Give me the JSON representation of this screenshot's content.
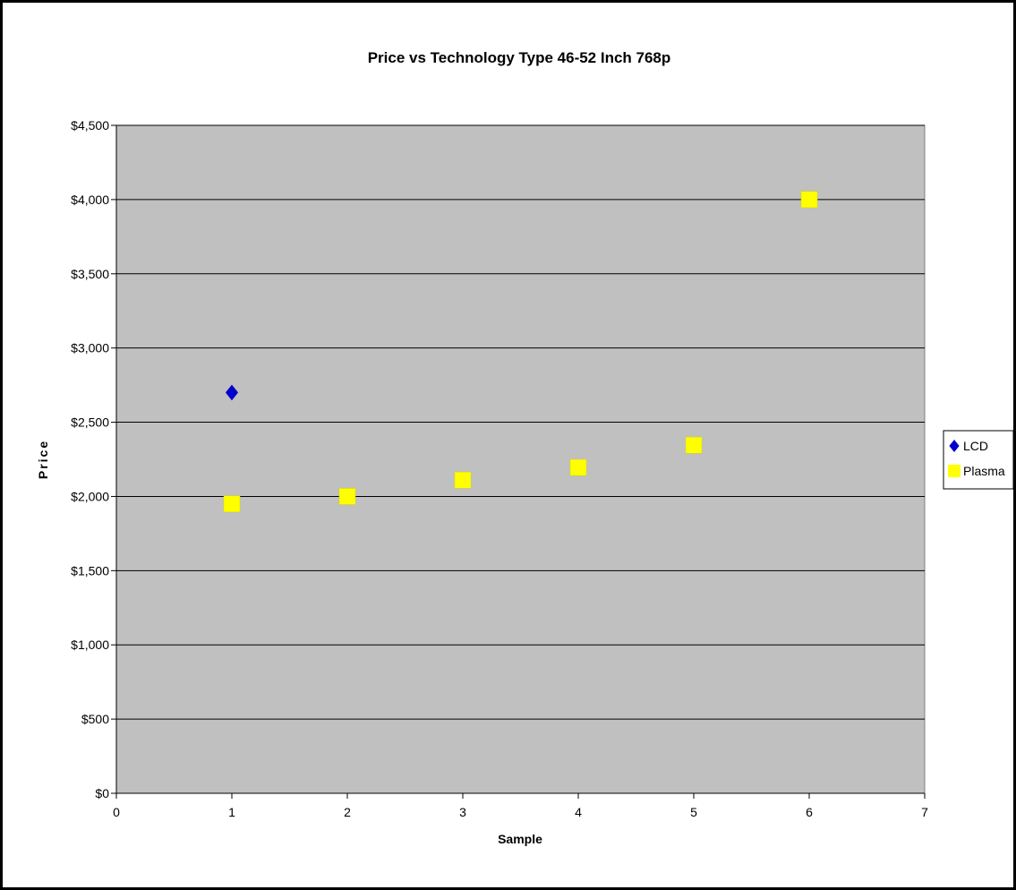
{
  "chart_data": {
    "type": "scatter",
    "title": "Price vs Technology Type 46-52 Inch 768p",
    "xlabel": "Sample",
    "ylabel": "Price",
    "xlim": [
      0,
      7
    ],
    "ylim": [
      0,
      4500
    ],
    "x_ticks": [
      0,
      1,
      2,
      3,
      4,
      5,
      6,
      7
    ],
    "y_ticks": [
      0,
      500,
      1000,
      1500,
      2000,
      2500,
      3000,
      3500,
      4000,
      4500
    ],
    "y_tick_labels": [
      "$0",
      "$500",
      "$1,000",
      "$1,500",
      "$2,000",
      "$2,500",
      "$3,000",
      "$3,500",
      "$4,000",
      "$4,500"
    ],
    "grid": "horizontal",
    "plot_background": "#c0c0c0",
    "legend_position": "right",
    "series": [
      {
        "name": "LCD",
        "marker": "diamond",
        "color": "#0000cc",
        "points": [
          {
            "x": 1,
            "y": 2700
          }
        ]
      },
      {
        "name": "Plasma",
        "marker": "square",
        "color": "#ffff00",
        "points": [
          {
            "x": 1,
            "y": 1950
          },
          {
            "x": 2,
            "y": 2000
          },
          {
            "x": 3,
            "y": 2110
          },
          {
            "x": 4,
            "y": 2195
          },
          {
            "x": 5,
            "y": 2345
          },
          {
            "x": 6,
            "y": 4000
          }
        ]
      }
    ]
  }
}
